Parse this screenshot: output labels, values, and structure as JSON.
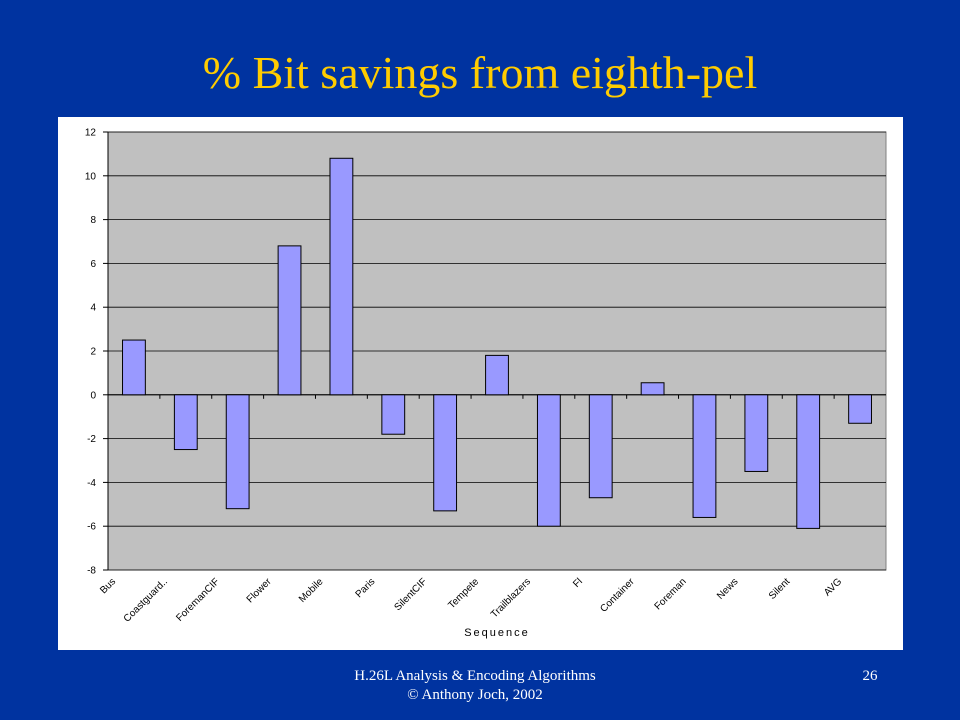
{
  "title": "% Bit savings from eighth-pel",
  "chart_data": {
    "type": "bar",
    "categories": [
      "Bus",
      "Coastguard..",
      "ForemanCIF",
      "Flower",
      "Mobile",
      "Paris",
      "SilentCIF",
      "Tempete",
      "Trailblazers",
      "Fl",
      "Container",
      "Foreman",
      "News",
      "Silent",
      "AVG"
    ],
    "values": [
      2.5,
      -2.5,
      -5.2,
      6.8,
      10.8,
      -1.8,
      -5.3,
      1.8,
      -6,
      -4.7,
      0.55,
      -5.6,
      -3.5,
      -6.1,
      -1.3
    ],
    "color": "#9999ff",
    "x_label": "Sequence",
    "ylim": [
      -8,
      12
    ],
    "yticks": [
      -8,
      -6,
      -4,
      -2,
      0,
      2,
      4,
      6,
      8,
      10,
      12
    ],
    "grid": true
  },
  "footer": {
    "lines": [
      "H.26L Analysis & Encoding Algorithms",
      "© Anthony Joch, 2002"
    ],
    "page": "26"
  }
}
